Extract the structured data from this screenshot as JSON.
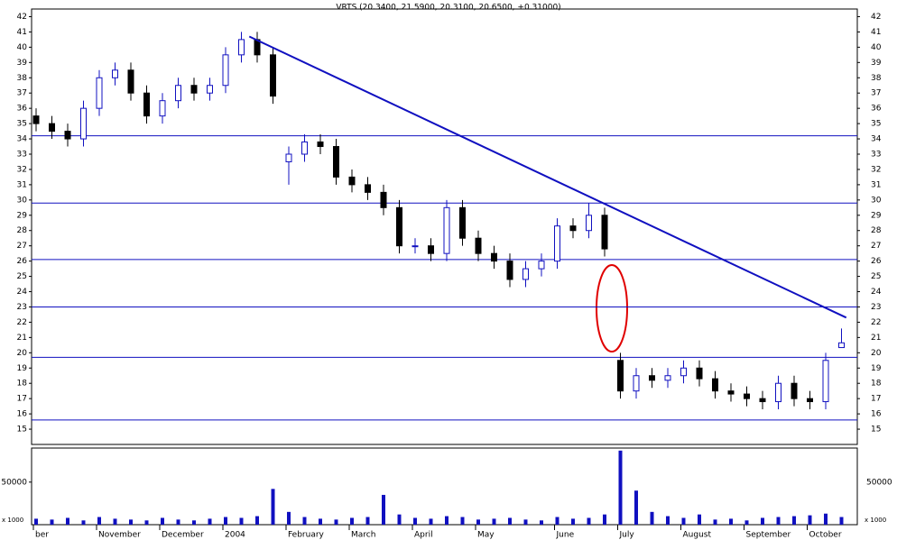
{
  "chart_data": {
    "type": "candlestick",
    "title": "VRTS (20.3400, 21.5900, 20.3100, 20.6500, +0.31000)",
    "categories": [
      "ber",
      null,
      null,
      null,
      "November",
      null,
      null,
      null,
      "December",
      null,
      null,
      null,
      "2004",
      null,
      null,
      null,
      "February",
      null,
      null,
      null,
      "March",
      null,
      null,
      null,
      "April",
      null,
      null,
      null,
      "May",
      null,
      null,
      null,
      null,
      "June",
      null,
      null,
      null,
      "July",
      null,
      null,
      null,
      "August",
      null,
      null,
      null,
      "September",
      null,
      null,
      null,
      "October",
      null,
      null
    ],
    "open": [
      35.5,
      35,
      34.5,
      34,
      36,
      38,
      38.5,
      37,
      35.5,
      36.5,
      37.5,
      37,
      37.5,
      39.5,
      40.5,
      39.5,
      32.5,
      33,
      33.8,
      33.5,
      31.5,
      31,
      30.5,
      29.5,
      27,
      27,
      26.5,
      29.5,
      27.5,
      26.5,
      26,
      24.8,
      25.5,
      26,
      28.3,
      28,
      29,
      19.5,
      17.5,
      18.5,
      18.2,
      18.5,
      19,
      18.3,
      17.5,
      17.3,
      17,
      16.8,
      18,
      17,
      16.8,
      20.34
    ],
    "high": [
      36,
      35.5,
      35,
      36.5,
      38.5,
      39,
      39,
      37.5,
      37,
      38,
      38,
      38,
      40,
      41,
      41,
      40,
      33.5,
      34.3,
      34.3,
      34,
      32,
      31.5,
      31,
      30,
      27.5,
      27.5,
      30,
      30,
      28,
      27,
      26.5,
      26,
      26.5,
      28.8,
      28.8,
      29.8,
      29.5,
      20,
      19,
      19,
      19,
      19.5,
      19.5,
      18.8,
      18,
      17.8,
      17.5,
      18.5,
      18.5,
      17.5,
      20,
      21.59
    ],
    "low": [
      34.5,
      34,
      33.5,
      33.5,
      35.5,
      37.5,
      36.5,
      35,
      35,
      36,
      36.5,
      36.5,
      37,
      39,
      39,
      36.3,
      31,
      32.5,
      33,
      31,
      30.5,
      30,
      29,
      26.5,
      26.5,
      26,
      26,
      27,
      26,
      25.5,
      24.3,
      24.3,
      25,
      25.5,
      27.5,
      27.5,
      26.3,
      17,
      17,
      17.7,
      17.7,
      18,
      17.8,
      17,
      16.8,
      16.5,
      16.3,
      16.3,
      16.5,
      16.3,
      16.3,
      20.31
    ],
    "close": [
      35,
      34.5,
      34,
      36,
      38,
      38.5,
      37,
      35.5,
      36.5,
      37.5,
      37,
      37.5,
      39.5,
      40.5,
      39.5,
      36.8,
      33,
      33.8,
      33.5,
      31.5,
      31,
      30.5,
      29.5,
      27,
      27,
      26.5,
      29.5,
      27.5,
      26.5,
      26,
      24.8,
      25.5,
      26,
      28.3,
      28,
      29,
      26.8,
      17.5,
      18.5,
      18.2,
      18.5,
      19,
      18.3,
      17.5,
      17.3,
      17,
      16.8,
      18,
      17,
      16.8,
      19.5,
      20.65
    ],
    "up_color": "#1010c0",
    "down_color": "#000000",
    "ylim": [
      14,
      42.5
    ],
    "yticks": [
      15,
      16,
      17,
      18,
      19,
      20,
      21,
      22,
      23,
      24,
      25,
      26,
      27,
      28,
      29,
      30,
      31,
      32,
      33,
      34,
      35,
      36,
      37,
      38,
      39,
      40,
      41,
      42
    ],
    "hlines": [
      34.2,
      29.8,
      26.1,
      23,
      19.7,
      15.6
    ],
    "line_color": "#1010c0",
    "trendline": {
      "x": [
        13.5,
        51.3
      ],
      "values": [
        40.7,
        22.3
      ]
    },
    "volume": {
      "values": [
        7000,
        6000,
        8000,
        5000,
        9000,
        7000,
        6000,
        5000,
        8000,
        6000,
        5000,
        7000,
        9000,
        8000,
        10000,
        42000,
        15000,
        9000,
        7000,
        6000,
        8000,
        9000,
        35000,
        12000,
        8000,
        7000,
        10000,
        9000,
        6000,
        7000,
        8000,
        6000,
        5000,
        9000,
        7000,
        8000,
        12000,
        87000,
        40000,
        15000,
        10000,
        8000,
        12000,
        6000,
        7000,
        5000,
        8000,
        9000,
        10000,
        11000,
        13000,
        9000
      ],
      "ylim": [
        0,
        90000
      ],
      "yticks": [
        50000
      ],
      "unit_label": "x 1000",
      "color": "#1010c0"
    }
  }
}
